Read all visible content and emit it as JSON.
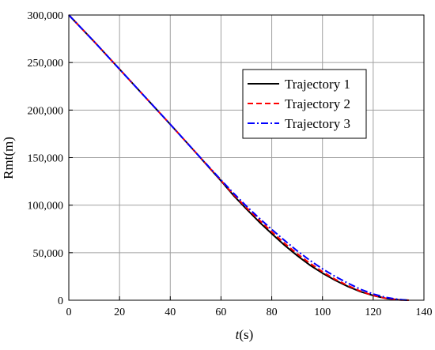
{
  "chart_data": {
    "type": "line",
    "xlabel_italic": "t",
    "xlabel_rest": "(s)",
    "ylabel": "Rmt(m)",
    "xlim": [
      0,
      140
    ],
    "ylim": [
      0,
      300000
    ],
    "xticks": [
      0,
      20,
      40,
      60,
      80,
      100,
      120,
      140
    ],
    "yticks": [
      0,
      50000,
      100000,
      150000,
      200000,
      250000,
      300000
    ],
    "xtick_labels": [
      "0",
      "20",
      "40",
      "60",
      "80",
      "100",
      "120",
      "140"
    ],
    "ytick_labels": [
      "0",
      "50,000",
      "100,000",
      "150,000",
      "200,000",
      "250,000",
      "300,000"
    ],
    "grid": true,
    "legend_position": "top-right",
    "series": [
      {
        "name": "Trajectory 1",
        "color": "#000000",
        "dash": "solid",
        "x": [
          0,
          10,
          20,
          30,
          40,
          50,
          60,
          65,
          70,
          75,
          80,
          85,
          90,
          95,
          100,
          105,
          110,
          115,
          120,
          125,
          130,
          134
        ],
        "y": [
          300000,
          272000,
          243000,
          214000,
          185000,
          155500,
          125500,
          110000,
          96000,
          82500,
          70000,
          58000,
          47000,
          37000,
          28500,
          21000,
          14500,
          9000,
          5000,
          2000,
          400,
          0
        ]
      },
      {
        "name": "Trajectory 2",
        "color": "#ff0000",
        "dash": "dashed",
        "x": [
          0,
          10,
          20,
          30,
          40,
          50,
          60,
          65,
          70,
          75,
          80,
          85,
          90,
          95,
          100,
          105,
          110,
          115,
          120,
          125,
          130,
          134
        ],
        "y": [
          300000,
          272000,
          243000,
          214000,
          185000,
          155500,
          126000,
          111000,
          97500,
          84500,
          72000,
          60000,
          49000,
          39000,
          30000,
          22000,
          15500,
          9500,
          5000,
          2000,
          400,
          0
        ]
      },
      {
        "name": "Trajectory 3",
        "color": "#0000ff",
        "dash": "dashdot",
        "x": [
          0,
          10,
          20,
          30,
          40,
          50,
          60,
          65,
          70,
          75,
          80,
          85,
          90,
          95,
          100,
          105,
          110,
          115,
          120,
          125,
          130,
          134
        ],
        "y": [
          300000,
          272000,
          243000,
          214000,
          185000,
          155500,
          126500,
          112500,
          99000,
          86500,
          74500,
          63000,
          52000,
          42000,
          33000,
          25000,
          18000,
          11500,
          6500,
          3000,
          800,
          0
        ]
      }
    ]
  }
}
